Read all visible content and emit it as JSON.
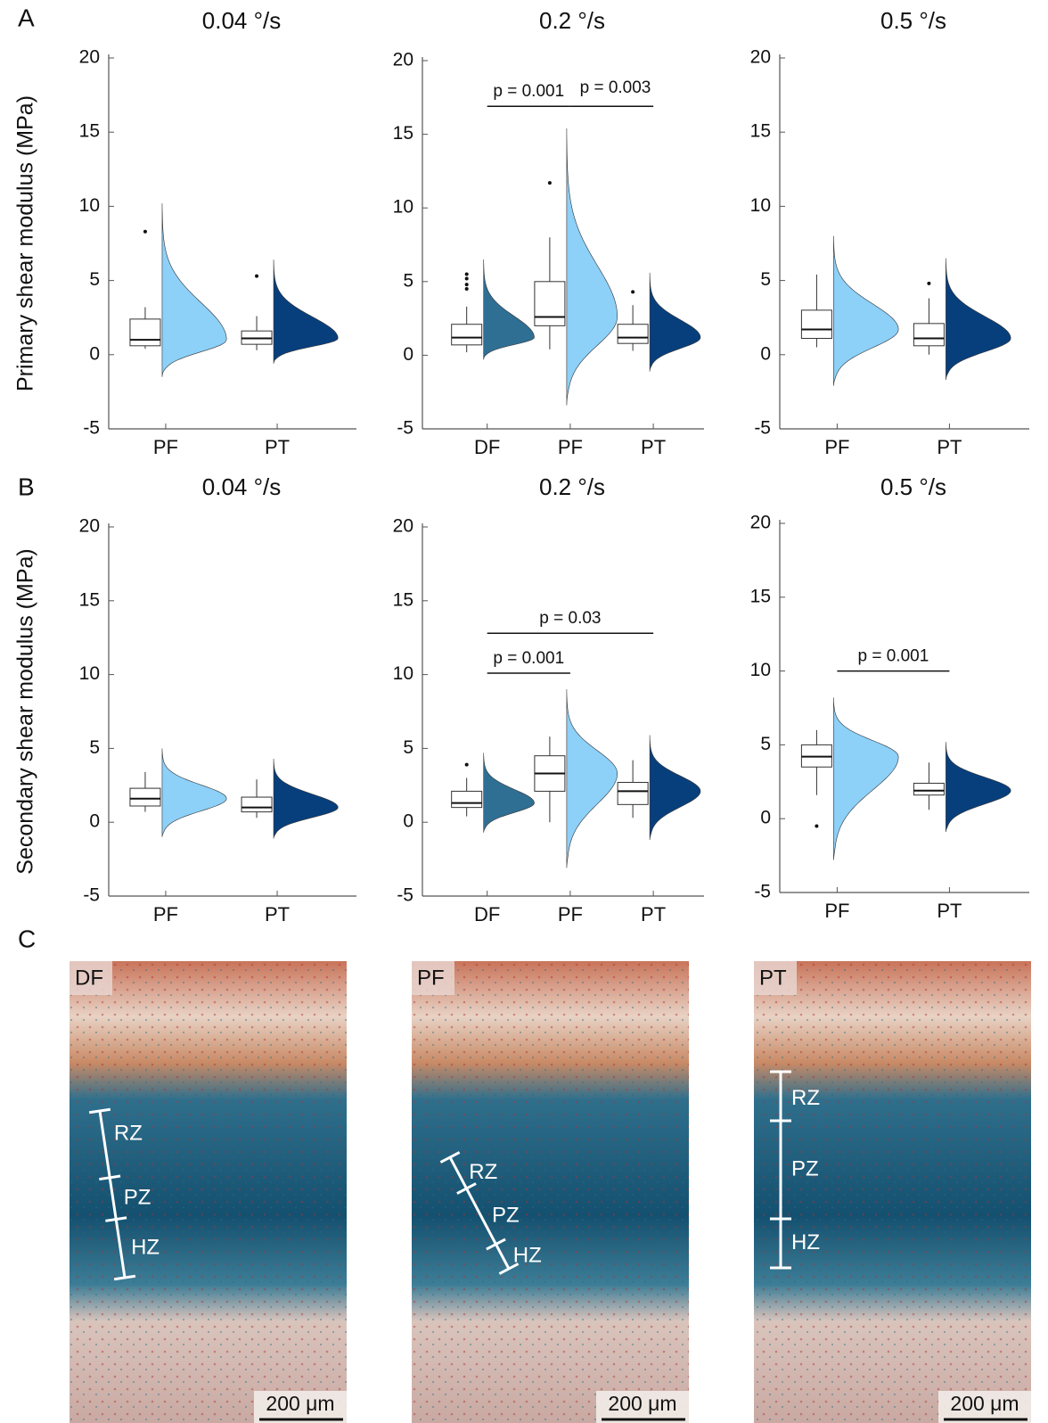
{
  "panel_labels": [
    "A",
    "B",
    "C"
  ],
  "chart_data": [
    {
      "type": "raincloud",
      "title": "0.04 °/s",
      "ylabel": "Primary shear modulus (MPa)",
      "categories": [
        "PF",
        "PT"
      ],
      "ylim": [
        -5,
        20
      ],
      "yticks": [
        -5,
        0,
        5,
        10,
        15,
        20
      ],
      "boxes": [
        {
          "q1": 0.6,
          "median": 1.0,
          "q3": 2.4,
          "whislo": 0.4,
          "whishi": 3.2,
          "outliers": [
            8.3
          ],
          "violin": [
            -1.5,
            10.2
          ],
          "color": "#8dd0f8"
        },
        {
          "q1": 0.7,
          "median": 1.1,
          "q3": 1.6,
          "whislo": 0.3,
          "whishi": 2.6,
          "outliers": [
            5.3
          ],
          "violin": [
            -0.6,
            6.4
          ],
          "color": "#073f7c"
        }
      ],
      "significance": []
    },
    {
      "type": "raincloud",
      "title": "0.2 °/s",
      "categories": [
        "DF",
        "PF",
        "PT"
      ],
      "ylim": [
        -5,
        20
      ],
      "yticks": [
        -5,
        0,
        5,
        10,
        15,
        20
      ],
      "boxes": [
        {
          "q1": 0.7,
          "median": 1.2,
          "q3": 2.1,
          "whislo": 0.2,
          "whishi": 3.3,
          "outliers": [
            4.5,
            4.8,
            5.2,
            5.5
          ],
          "violin": [
            -0.3,
            6.5
          ],
          "color": "#2f6f93"
        },
        {
          "q1": 2.0,
          "median": 2.6,
          "q3": 5.0,
          "whislo": 0.4,
          "whishi": 8.0,
          "outliers": [
            11.7
          ],
          "violin": [
            -3.4,
            15.4
          ],
          "color": "#8dd0f8"
        },
        {
          "q1": 0.8,
          "median": 1.2,
          "q3": 2.1,
          "whislo": 0.3,
          "whishi": 3.4,
          "outliers": [
            4.3
          ],
          "violin": [
            -1.1,
            5.6
          ],
          "color": "#073f7c"
        }
      ],
      "significance": [
        {
          "label": "p = 0.001",
          "between": [
            "DF",
            "PF"
          ],
          "y": 16.9
        },
        {
          "label": "p = 0.003",
          "between": [
            "PF",
            "PT"
          ],
          "y": 16.9
        }
      ]
    },
    {
      "type": "raincloud",
      "title": "0.5 °/s",
      "categories": [
        "PF",
        "PT"
      ],
      "ylim": [
        -5,
        20
      ],
      "yticks": [
        -5,
        0,
        5,
        10,
        15,
        20
      ],
      "boxes": [
        {
          "q1": 1.1,
          "median": 1.7,
          "q3": 3.0,
          "whislo": 0.5,
          "whishi": 5.4,
          "outliers": [],
          "violin": [
            -2.1,
            8.0
          ],
          "color": "#8dd0f8"
        },
        {
          "q1": 0.6,
          "median": 1.1,
          "q3": 2.1,
          "whislo": 0.0,
          "whishi": 3.8,
          "outliers": [
            4.8
          ],
          "violin": [
            -1.7,
            6.5
          ],
          "color": "#073f7c"
        }
      ],
      "significance": []
    },
    {
      "type": "raincloud",
      "title": "0.04 °/s",
      "ylabel": "Secondary shear modulus (MPa)",
      "categories": [
        "PF",
        "PT"
      ],
      "ylim": [
        -5,
        20
      ],
      "yticks": [
        -5,
        0,
        5,
        10,
        15,
        20
      ],
      "boxes": [
        {
          "q1": 1.1,
          "median": 1.6,
          "q3": 2.3,
          "whislo": 0.7,
          "whishi": 3.4,
          "outliers": [],
          "violin": [
            -1.0,
            5.0
          ],
          "color": "#8dd0f8"
        },
        {
          "q1": 0.7,
          "median": 1.0,
          "q3": 1.7,
          "whislo": 0.3,
          "whishi": 2.9,
          "outliers": [],
          "violin": [
            -1.1,
            4.3
          ],
          "color": "#073f7c"
        }
      ],
      "significance": []
    },
    {
      "type": "raincloud",
      "title": "0.2 °/s",
      "categories": [
        "DF",
        "PF",
        "PT"
      ],
      "ylim": [
        -5,
        20
      ],
      "yticks": [
        -5,
        0,
        5,
        10,
        15,
        20
      ],
      "boxes": [
        {
          "q1": 1.0,
          "median": 1.3,
          "q3": 2.1,
          "whislo": 0.4,
          "whishi": 3.0,
          "outliers": [
            3.9
          ],
          "violin": [
            -0.7,
            4.7
          ],
          "color": "#2f6f93"
        },
        {
          "q1": 2.1,
          "median": 3.3,
          "q3": 4.5,
          "whislo": 0.0,
          "whishi": 5.8,
          "outliers": [],
          "violin": [
            -3.1,
            9.0
          ],
          "color": "#8dd0f8"
        },
        {
          "q1": 1.2,
          "median": 2.1,
          "q3": 2.7,
          "whislo": 0.3,
          "whishi": 4.2,
          "outliers": [],
          "violin": [
            -1.2,
            5.9
          ],
          "color": "#073f7c"
        }
      ],
      "significance": [
        {
          "label": "p = 0.03",
          "between": [
            "DF",
            "PT"
          ],
          "y": 12.8
        },
        {
          "label": "p = 0.001",
          "between": [
            "DF",
            "PF"
          ],
          "y": 10.1
        }
      ]
    },
    {
      "type": "raincloud",
      "title": "0.5 °/s",
      "categories": [
        "PF",
        "PT"
      ],
      "ylim": [
        -5,
        20
      ],
      "yticks": [
        -5,
        0,
        5,
        10,
        15,
        20
      ],
      "boxes": [
        {
          "q1": 3.5,
          "median": 4.2,
          "q3": 5.0,
          "whislo": 1.6,
          "whishi": 6.0,
          "outliers": [
            -0.5
          ],
          "violin": [
            -2.8,
            8.2
          ],
          "color": "#8dd0f8"
        },
        {
          "q1": 1.6,
          "median": 1.9,
          "q3": 2.4,
          "whislo": 0.6,
          "whishi": 3.8,
          "outliers": [],
          "violin": [
            -0.9,
            5.2
          ],
          "color": "#073f7c"
        }
      ],
      "significance": [
        {
          "label": "p = 0.001",
          "between": [
            "PF",
            "PT"
          ],
          "y": 10.0
        }
      ]
    }
  ],
  "histology": [
    {
      "label": "DF",
      "zones": [
        "RZ",
        "PZ",
        "HZ"
      ],
      "scale_bar": "200 μm"
    },
    {
      "label": "PF",
      "zones": [
        "RZ",
        "PZ",
        "HZ"
      ],
      "scale_bar": "200 μm"
    },
    {
      "label": "PT",
      "zones": [
        "RZ",
        "PZ",
        "HZ"
      ],
      "scale_bar": "200 μm"
    }
  ]
}
